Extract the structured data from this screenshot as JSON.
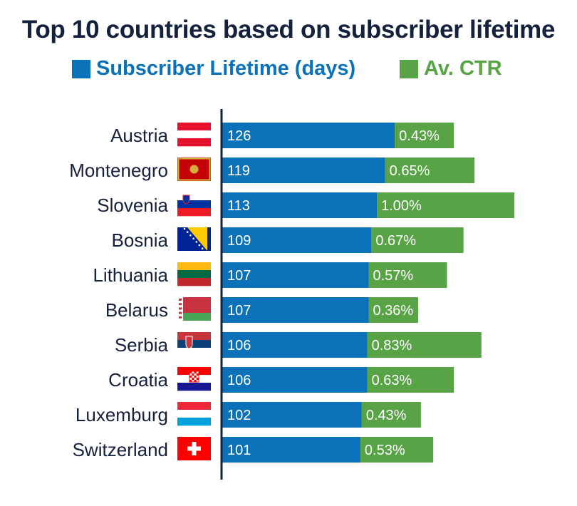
{
  "chart_data": {
    "type": "bar",
    "title": "Top 10 countries based on subscriber lifetime",
    "categories": [
      "Austria",
      "Montenegro",
      "Slovenia",
      "Bosnia",
      "Lithuania",
      "Belarus",
      "Serbia",
      "Croatia",
      "Luxemburg",
      "Switzerland"
    ],
    "series": [
      {
        "name": "Subscriber Lifetime (days)",
        "values": [
          126,
          119,
          113,
          109,
          107,
          107,
          106,
          106,
          102,
          101
        ],
        "labels": [
          "126",
          "119",
          "113",
          "109",
          "107",
          "107",
          "106",
          "106",
          "102",
          "101"
        ]
      },
      {
        "name": "Av. CTR",
        "values": [
          0.43,
          0.65,
          1.0,
          0.67,
          0.57,
          0.36,
          0.83,
          0.63,
          0.43,
          0.53
        ],
        "labels": [
          "0.43%",
          "0.65%",
          "1.00%",
          "0.67%",
          "0.57%",
          "0.36%",
          "0.83%",
          "0.63%",
          "0.43%",
          "0.53%"
        ]
      }
    ],
    "stacked": true,
    "orientation": "horizontal",
    "legend_position": "top",
    "grid": false
  },
  "colors": {
    "lifetime": "#0b72b9",
    "ctr": "#58a346",
    "title": "#14213d",
    "axis": "#14213d"
  },
  "flags": [
    {
      "country": "Austria",
      "icon": "austria-flag-icon"
    },
    {
      "country": "Montenegro",
      "icon": "montenegro-flag-icon"
    },
    {
      "country": "Slovenia",
      "icon": "slovenia-flag-icon"
    },
    {
      "country": "Bosnia",
      "icon": "bosnia-flag-icon"
    },
    {
      "country": "Lithuania",
      "icon": "lithuania-flag-icon"
    },
    {
      "country": "Belarus",
      "icon": "belarus-flag-icon"
    },
    {
      "country": "Serbia",
      "icon": "serbia-flag-icon"
    },
    {
      "country": "Croatia",
      "icon": "croatia-flag-icon"
    },
    {
      "country": "Luxemburg",
      "icon": "luxemburg-flag-icon"
    },
    {
      "country": "Switzerland",
      "icon": "switzerland-flag-icon"
    }
  ]
}
